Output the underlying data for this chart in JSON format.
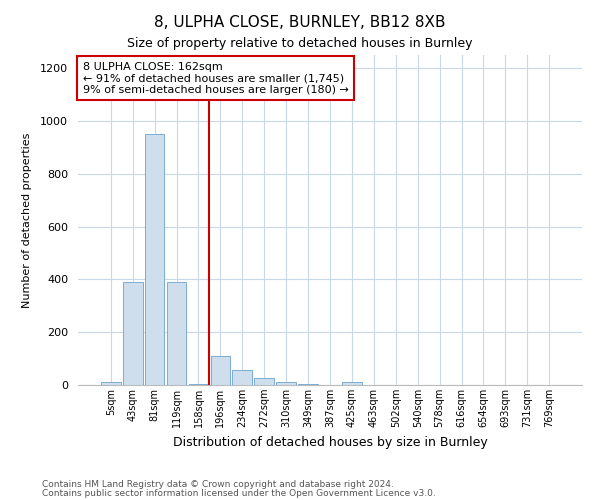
{
  "title1": "8, ULPHA CLOSE, BURNLEY, BB12 8XB",
  "title2": "Size of property relative to detached houses in Burnley",
  "xlabel": "Distribution of detached houses by size in Burnley",
  "ylabel": "Number of detached properties",
  "footnote1": "Contains HM Land Registry data © Crown copyright and database right 2024.",
  "footnote2": "Contains public sector information licensed under the Open Government Licence v3.0.",
  "categories": [
    "5sqm",
    "43sqm",
    "81sqm",
    "119sqm",
    "158sqm",
    "196sqm",
    "234sqm",
    "272sqm",
    "310sqm",
    "349sqm",
    "387sqm",
    "425sqm",
    "463sqm",
    "502sqm",
    "540sqm",
    "578sqm",
    "616sqm",
    "654sqm",
    "693sqm",
    "731sqm",
    "769sqm"
  ],
  "values": [
    10,
    390,
    950,
    390,
    3,
    110,
    55,
    25,
    10,
    5,
    0,
    10,
    0,
    0,
    0,
    0,
    0,
    0,
    0,
    0,
    0
  ],
  "bar_color": "#cfdeed",
  "bar_edge_color": "#7aadd4",
  "vline_x": 4.5,
  "vline_color": "#cc0000",
  "annotation_text": "8 ULPHA CLOSE: 162sqm\n← 91% of detached houses are smaller (1,745)\n9% of semi-detached houses are larger (180) →",
  "annotation_box_color": "white",
  "annotation_box_edge": "#cc0000",
  "ylim": [
    0,
    1250
  ],
  "yticks": [
    0,
    200,
    400,
    600,
    800,
    1000,
    1200
  ],
  "background_color": "white",
  "grid_color": "#c8d8e8"
}
